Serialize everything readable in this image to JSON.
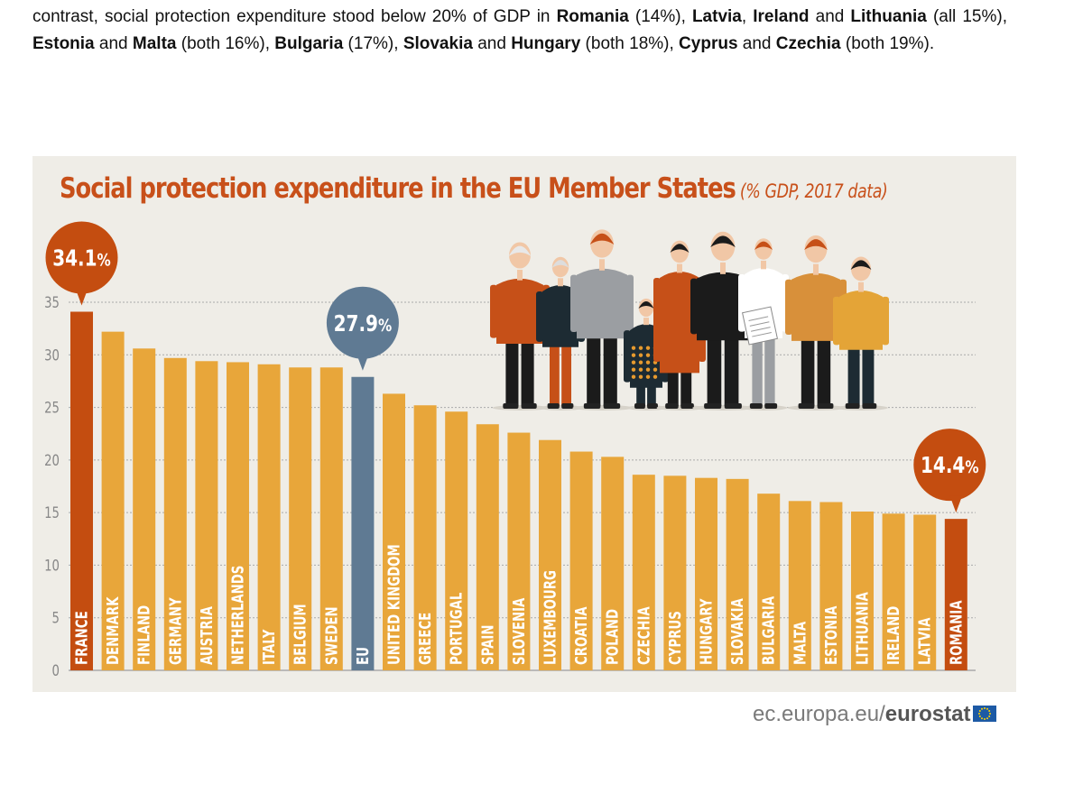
{
  "intro": [
    {
      "t": "contrast, social protection expenditure stood below 20% of GDP in ",
      "b": false
    },
    {
      "t": "Romania",
      "b": true
    },
    {
      "t": " (14%), ",
      "b": false
    },
    {
      "t": "Latvia",
      "b": true
    },
    {
      "t": ", ",
      "b": false
    },
    {
      "t": "Ireland",
      "b": true
    },
    {
      "t": " and ",
      "b": false
    },
    {
      "t": "Lithuania",
      "b": true
    },
    {
      "t": " (all 15%), ",
      "b": false
    },
    {
      "t": "Estonia",
      "b": true
    },
    {
      "t": " and ",
      "b": false
    },
    {
      "t": "Malta",
      "b": true
    },
    {
      "t": " (both 16%), ",
      "b": false
    },
    {
      "t": "Bulgaria",
      "b": true
    },
    {
      "t": " (17%), ",
      "b": false
    },
    {
      "t": "Slovakia",
      "b": true
    },
    {
      "t": " and ",
      "b": false
    },
    {
      "t": "Hungary",
      "b": true
    },
    {
      "t": " (both 18%), ",
      "b": false
    },
    {
      "t": "Cyprus",
      "b": true
    },
    {
      "t": " and ",
      "b": false
    },
    {
      "t": "Czechia",
      "b": true
    },
    {
      "t": " (both 19%).",
      "b": false
    }
  ],
  "chart_data": {
    "type": "bar",
    "title": "Social protection expenditure in the EU Member States",
    "subtitle": "(% GDP, 2017 data)",
    "xlabel": "",
    "ylabel": "",
    "ylim": [
      0,
      35
    ],
    "yticks": [
      0,
      5,
      10,
      15,
      20,
      25,
      30,
      35
    ],
    "grid": true,
    "categories": [
      "FRANCE",
      "DENMARK",
      "FINLAND",
      "GERMANY",
      "AUSTRIA",
      "NETHERLANDS",
      "ITALY",
      "BELGIUM",
      "SWEDEN",
      "EU",
      "UNITED KINGDOM",
      "GREECE",
      "PORTUGAL",
      "SPAIN",
      "SLOVENIA",
      "LUXEMBOURG",
      "CROATIA",
      "POLAND",
      "CZECHIA",
      "CYPRUS",
      "HUNGARY",
      "SLOVAKIA",
      "BULGARIA",
      "MALTA",
      "ESTONIA",
      "LITHUANIA",
      "IRELAND",
      "LATVIA",
      "ROMANIA"
    ],
    "values": [
      34.1,
      32.2,
      30.6,
      29.7,
      29.4,
      29.3,
      29.1,
      28.8,
      28.8,
      27.9,
      26.3,
      25.2,
      24.6,
      23.4,
      22.6,
      21.9,
      20.8,
      20.3,
      18.6,
      18.5,
      18.3,
      18.2,
      16.8,
      16.1,
      16.0,
      15.1,
      14.9,
      14.8,
      14.4
    ],
    "annotations": [
      {
        "category": "FRANCE",
        "value": "34.1",
        "unit": "%"
      },
      {
        "category": "EU",
        "value": "27.9",
        "unit": "%"
      },
      {
        "category": "ROMANIA",
        "value": "14.4",
        "unit": "%"
      }
    ],
    "colors": {
      "bar": "#e8a63a",
      "highlight": "#c44d10",
      "eu": "#5f7a93",
      "grid": "#aaaaaa",
      "text": "#c8501a",
      "tick": "#888888"
    }
  },
  "footer": {
    "site": "ec.europa.eu/",
    "brand": "eurostat"
  }
}
